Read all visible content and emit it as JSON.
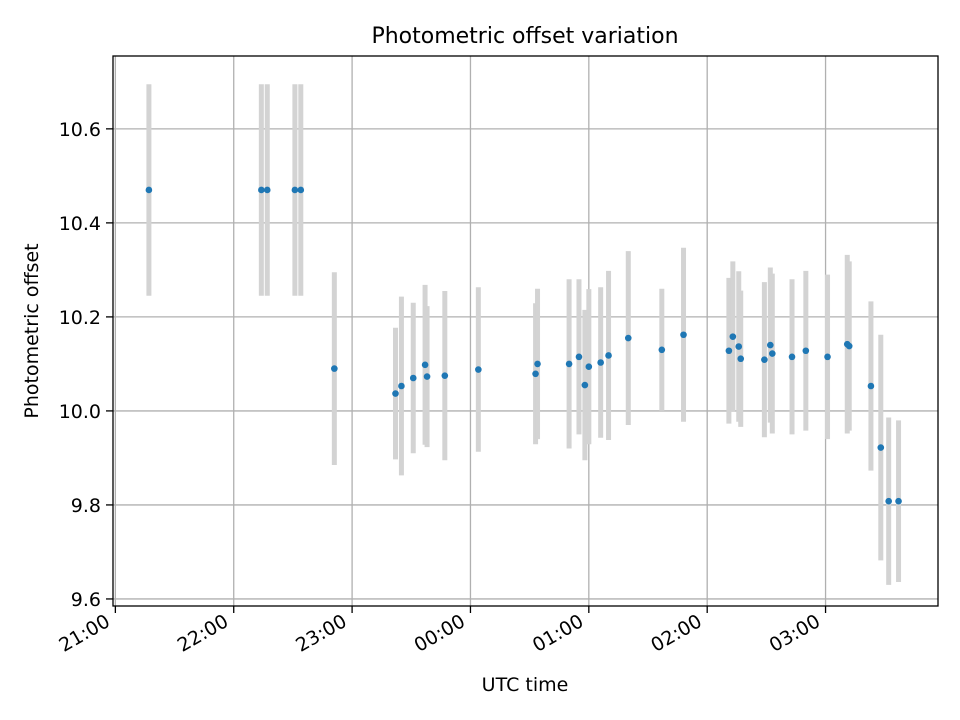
{
  "chart_data": {
    "type": "scatter",
    "title": "Photometric offset variation",
    "xlabel": "UTC time",
    "ylabel": "Photometric offset",
    "x_tick_labels": [
      "21:00",
      "22:00",
      "23:00",
      "00:00",
      "01:00",
      "02:00",
      "03:00"
    ],
    "y_tick_labels": [
      "9.6",
      "9.8",
      "10.0",
      "10.2",
      "10.4",
      "10.6"
    ],
    "ylim": [
      9.585,
      10.755
    ],
    "xlim_hours": [
      20.98,
      27.95
    ],
    "grid": true,
    "colors": {
      "point": "#1f77b4",
      "errorbar": "#d3d3d3",
      "grid": "#b0b0b0"
    },
    "points": [
      {
        "t": "21:17",
        "y": 10.47,
        "err": 0.225
      },
      {
        "t": "22:14",
        "y": 10.47,
        "err": 0.225
      },
      {
        "t": "22:17",
        "y": 10.47,
        "err": 0.225
      },
      {
        "t": "22:31",
        "y": 10.47,
        "err": 0.225
      },
      {
        "t": "22:34",
        "y": 10.47,
        "err": 0.225
      },
      {
        "t": "22:51",
        "y": 10.09,
        "err": 0.205
      },
      {
        "t": "23:22",
        "y": 10.037,
        "err": 0.14
      },
      {
        "t": "23:25",
        "y": 10.053,
        "err": 0.19
      },
      {
        "t": "23:31",
        "y": 10.07,
        "err": 0.16
      },
      {
        "t": "23:37",
        "y": 10.098,
        "err": 0.17
      },
      {
        "t": "23:38",
        "y": 10.073,
        "err": 0.15
      },
      {
        "t": "23:47",
        "y": 10.075,
        "err": 0.18
      },
      {
        "t": "00:04",
        "y": 10.088,
        "err": 0.175
      },
      {
        "t": "00:33",
        "y": 10.079,
        "err": 0.15
      },
      {
        "t": "00:34",
        "y": 10.1,
        "err": 0.16
      },
      {
        "t": "00:50",
        "y": 10.1,
        "err": 0.18
      },
      {
        "t": "00:55",
        "y": 10.115,
        "err": 0.165
      },
      {
        "t": "00:58",
        "y": 10.055,
        "err": 0.16
      },
      {
        "t": "01:00",
        "y": 10.094,
        "err": 0.165
      },
      {
        "t": "01:06",
        "y": 10.103,
        "err": 0.16
      },
      {
        "t": "01:10",
        "y": 10.118,
        "err": 0.18
      },
      {
        "t": "01:20",
        "y": 10.155,
        "err": 0.185
      },
      {
        "t": "01:37",
        "y": 10.13,
        "err": 0.13
      },
      {
        "t": "01:48",
        "y": 10.162,
        "err": 0.185
      },
      {
        "t": "02:11",
        "y": 10.128,
        "err": 0.155
      },
      {
        "t": "02:13",
        "y": 10.158,
        "err": 0.16
      },
      {
        "t": "02:16",
        "y": 10.137,
        "err": 0.16
      },
      {
        "t": "02:17",
        "y": 10.111,
        "err": 0.145
      },
      {
        "t": "02:29",
        "y": 10.109,
        "err": 0.165
      },
      {
        "t": "02:32",
        "y": 10.14,
        "err": 0.165
      },
      {
        "t": "02:33",
        "y": 10.122,
        "err": 0.17
      },
      {
        "t": "02:43",
        "y": 10.115,
        "err": 0.165
      },
      {
        "t": "02:50",
        "y": 10.128,
        "err": 0.17
      },
      {
        "t": "03:01",
        "y": 10.115,
        "err": 0.175
      },
      {
        "t": "03:11",
        "y": 10.142,
        "err": 0.19
      },
      {
        "t": "03:12",
        "y": 10.138,
        "err": 0.18
      },
      {
        "t": "03:23",
        "y": 10.053,
        "err": 0.18
      },
      {
        "t": "03:28",
        "y": 9.922,
        "err": 0.24
      },
      {
        "t": "03:32",
        "y": 9.808,
        "err": 0.178
      },
      {
        "t": "03:37",
        "y": 9.808,
        "err": 0.172
      }
    ]
  }
}
